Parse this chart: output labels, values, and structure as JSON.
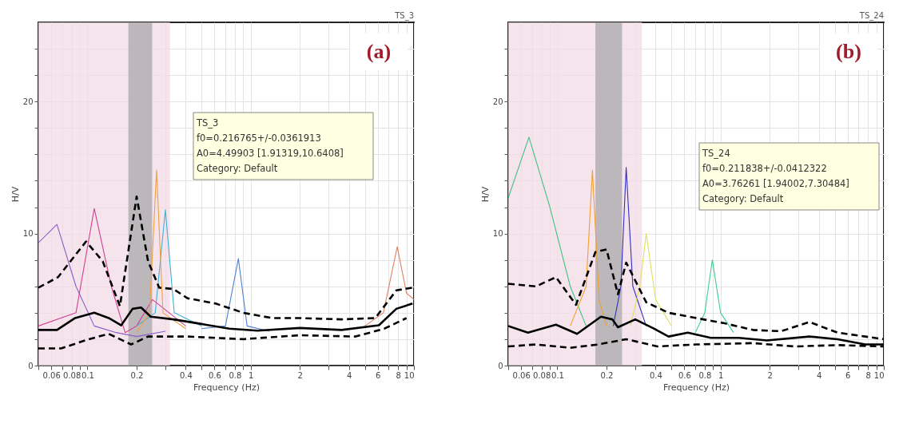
{
  "chart_data": [
    {
      "type": "line",
      "xlabel": "Frequency (Hz)",
      "ylabel": "H/V",
      "log": "x",
      "grid": true,
      "legend": false,
      "xlim": [
        0.05,
        10
      ],
      "ylim": [
        0,
        26
      ],
      "xticks": [
        {
          "value": 0.05,
          "label": null
        },
        0.06,
        {
          "value": 0.07,
          "label": null
        },
        0.08,
        {
          "value": 0.09,
          "label": null
        },
        0.1,
        0.2,
        {
          "value": 0.3,
          "label": null
        },
        0.4,
        {
          "value": 0.5,
          "label": null
        },
        0.6,
        {
          "value": 0.7,
          "label": null
        },
        0.8,
        {
          "value": 0.9,
          "label": null
        },
        1,
        2,
        {
          "value": 3,
          "label": null
        },
        4,
        {
          "value": 5,
          "label": null
        },
        6,
        {
          "value": 7,
          "label": null
        },
        8,
        {
          "value": 9,
          "label": null
        },
        10
      ],
      "yticks": [
        0,
        {
          "value": 2,
          "label": null
        },
        {
          "value": 4,
          "label": null
        },
        {
          "value": 6,
          "label": null
        },
        {
          "value": 8,
          "label": null
        },
        10,
        {
          "value": 12,
          "label": null
        },
        {
          "value": 14,
          "label": null
        },
        {
          "value": 16,
          "label": null
        },
        {
          "value": 18,
          "label": null
        },
        20,
        {
          "value": 22,
          "label": null
        },
        {
          "value": 24,
          "label": null
        }
      ],
      "bands": [
        {
          "axis": "x",
          "from": 0.05,
          "to": 0.32,
          "color": "#f3dbe7"
        },
        {
          "axis": "x",
          "from": 0.178,
          "to": 0.249,
          "color": "#a8a8a8"
        }
      ],
      "annotations": [
        "TS_3",
        "(a)",
        "TS_3",
        "f0=0.216765+/-0.0361913",
        "A0=4.49903 [1.91319,10.6408]",
        "Category: Default"
      ],
      "series": [
        {
          "color": "#8a5cc8",
          "x": [
            0.05,
            0.065,
            0.085,
            0.11,
            0.15,
            0.2,
            0.3
          ],
          "values": [
            9.3,
            10.7,
            6.0,
            3.0,
            2.5,
            2.2,
            2.6
          ]
        },
        {
          "color": "#d0408f",
          "x": [
            0.05,
            0.085,
            0.11,
            0.14,
            0.17,
            0.2,
            0.25,
            0.4
          ],
          "values": [
            3.0,
            4.0,
            11.9,
            6.0,
            2.5,
            3.0,
            5.0,
            3.0
          ]
        },
        {
          "color": "#3fb0d8",
          "x": [
            0.2,
            0.26,
            0.3,
            0.34,
            0.5
          ],
          "values": [
            3.0,
            4.0,
            11.8,
            4.0,
            3.0
          ]
        },
        {
          "color": "#f0a040",
          "x": [
            0.2,
            0.24,
            0.265,
            0.29,
            0.4
          ],
          "values": [
            2.5,
            4.0,
            14.8,
            4.0,
            2.8
          ]
        },
        {
          "color": "#5080d0",
          "x": [
            0.5,
            0.7,
            0.84,
            0.95,
            1.3
          ],
          "values": [
            2.8,
            3.0,
            8.1,
            3.0,
            2.6
          ]
        },
        {
          "color": "#e08060",
          "x": [
            5,
            6.5,
            7.9,
            9,
            10
          ],
          "values": [
            3,
            4,
            9.0,
            5.5,
            5.0
          ]
        },
        {
          "color": "#000000",
          "line_style": "solid",
          "x": [
            0.05,
            0.065,
            0.084,
            0.11,
            0.135,
            0.161,
            0.189,
            0.213,
            0.244,
            0.336,
            0.5,
            0.74,
            1.1,
            2,
            3.6,
            6.1,
            7.8,
            9.8
          ],
          "values": [
            2.7,
            2.7,
            3.6,
            4.0,
            3.6,
            3.05,
            4.3,
            4.4,
            3.7,
            3.5,
            3.15,
            2.8,
            2.65,
            2.85,
            2.7,
            3.05,
            4.3,
            4.7
          ]
        },
        {
          "color": "#000000",
          "line_style": "dashed",
          "x": [
            0.05,
            0.066,
            0.098,
            0.124,
            0.158,
            0.2,
            0.235,
            0.275,
            0.336,
            0.41,
            0.61,
            0.9,
            1.35,
            2,
            3.6,
            5.8,
            7.8,
            9.8
          ],
          "values": [
            5.9,
            6.7,
            9.4,
            7.9,
            4.5,
            12.8,
            7.9,
            5.9,
            5.8,
            5.1,
            4.7,
            4.0,
            3.6,
            3.6,
            3.5,
            3.6,
            5.7,
            5.9
          ]
        },
        {
          "color": "#000000",
          "line_style": "dashed",
          "x": [
            0.05,
            0.069,
            0.102,
            0.135,
            0.185,
            0.235,
            0.41,
            0.9,
            2,
            4.4,
            6.6,
            9
          ],
          "values": [
            1.3,
            1.3,
            2.0,
            2.4,
            1.6,
            2.2,
            2.2,
            2.0,
            2.3,
            2.2,
            2.8,
            3.6
          ]
        }
      ]
    },
    {
      "type": "line",
      "xlabel": "Frequency (Hz)",
      "ylabel": "H/V",
      "log": "x",
      "grid": true,
      "legend": false,
      "xlim": [
        0.05,
        10
      ],
      "ylim": [
        0,
        26
      ],
      "xticks": [
        {
          "value": 0.05,
          "label": null
        },
        0.06,
        {
          "value": 0.07,
          "label": null
        },
        0.08,
        {
          "value": 0.09,
          "label": null
        },
        0.1,
        0.2,
        {
          "value": 0.3,
          "label": null
        },
        0.4,
        {
          "value": 0.5,
          "label": null
        },
        0.6,
        {
          "value": 0.7,
          "label": null
        },
        0.8,
        {
          "value": 0.9,
          "label": null
        },
        1,
        2,
        {
          "value": 3,
          "label": null
        },
        4,
        {
          "value": 5,
          "label": null
        },
        6,
        {
          "value": 7,
          "label": null
        },
        8,
        {
          "value": 9,
          "label": null
        },
        10
      ],
      "yticks": [
        0,
        {
          "value": 2,
          "label": null
        },
        {
          "value": 4,
          "label": null
        },
        {
          "value": 6,
          "label": null
        },
        {
          "value": 8,
          "label": null
        },
        10,
        {
          "value": 12,
          "label": null
        },
        {
          "value": 14,
          "label": null
        },
        {
          "value": 16,
          "label": null
        },
        {
          "value": 18,
          "label": null
        },
        20,
        {
          "value": 22,
          "label": null
        },
        {
          "value": 24,
          "label": null
        }
      ],
      "bands": [
        {
          "axis": "x",
          "from": 0.05,
          "to": 0.33,
          "color": "#f3dbe7"
        },
        {
          "axis": "x",
          "from": 0.171,
          "to": 0.249,
          "color": "#a8a8a8"
        }
      ],
      "annotations": [
        "TS_24",
        "(b)",
        "TS_24",
        "f0=0.211838+/-0.0412322",
        "A0=3.76261 [1.94002,7.30484]",
        "Category: Default"
      ],
      "series": [
        {
          "color": "#40c080",
          "x": [
            0.05,
            0.067,
            0.09,
            0.12,
            0.15
          ],
          "values": [
            12.7,
            17.3,
            12,
            6,
            3
          ]
        },
        {
          "color": "#f0a030",
          "x": [
            0.12,
            0.15,
            0.164,
            0.18,
            0.2
          ],
          "values": [
            3,
            6,
            14.8,
            5,
            3
          ]
        },
        {
          "color": "#3030c0",
          "x": [
            0.22,
            0.245,
            0.264,
            0.29,
            0.35
          ],
          "values": [
            3,
            6,
            15.0,
            6,
            3
          ]
        },
        {
          "color": "#e0e060",
          "x": [
            0.28,
            0.32,
            0.35,
            0.4,
            0.5
          ],
          "values": [
            3,
            6,
            10,
            5,
            3
          ]
        },
        {
          "color": "#40d090",
          "x": [
            0.7,
            0.8,
            0.89,
            1.0,
            1.2
          ],
          "values": [
            2.5,
            4,
            8.0,
            4,
            2.5
          ]
        },
        {
          "color": "#000000",
          "line_style": "solid",
          "x": [
            0.05,
            0.066,
            0.098,
            0.132,
            0.185,
            0.217,
            0.235,
            0.3,
            0.39,
            0.48,
            0.63,
            0.87,
            1.29,
            1.92,
            3.5,
            5.2,
            7.7,
            10
          ],
          "values": [
            3.0,
            2.5,
            3.1,
            2.4,
            3.7,
            3.5,
            2.9,
            3.5,
            2.8,
            2.2,
            2.5,
            2.1,
            2.1,
            1.9,
            2.2,
            2.0,
            1.6,
            1.6
          ]
        },
        {
          "color": "#000000",
          "line_style": "dashed",
          "x": [
            0.05,
            0.074,
            0.098,
            0.13,
            0.171,
            0.2,
            0.235,
            0.264,
            0.35,
            0.48,
            0.71,
            1.06,
            1.58,
            2.35,
            3.5,
            5.2,
            7.7,
            10
          ],
          "values": [
            6.2,
            6.0,
            6.7,
            4.6,
            8.6,
            8.8,
            5.4,
            7.8,
            4.8,
            4.0,
            3.6,
            3.2,
            2.7,
            2.6,
            3.3,
            2.5,
            2.2,
            2.0
          ]
        },
        {
          "color": "#000000",
          "line_style": "dashed",
          "x": [
            0.05,
            0.074,
            0.12,
            0.178,
            0.264,
            0.41,
            0.71,
            1.58,
            2.85,
            5.2,
            10
          ],
          "values": [
            1.45,
            1.6,
            1.35,
            1.6,
            2.0,
            1.45,
            1.6,
            1.7,
            1.45,
            1.55,
            1.45
          ]
        }
      ]
    }
  ]
}
